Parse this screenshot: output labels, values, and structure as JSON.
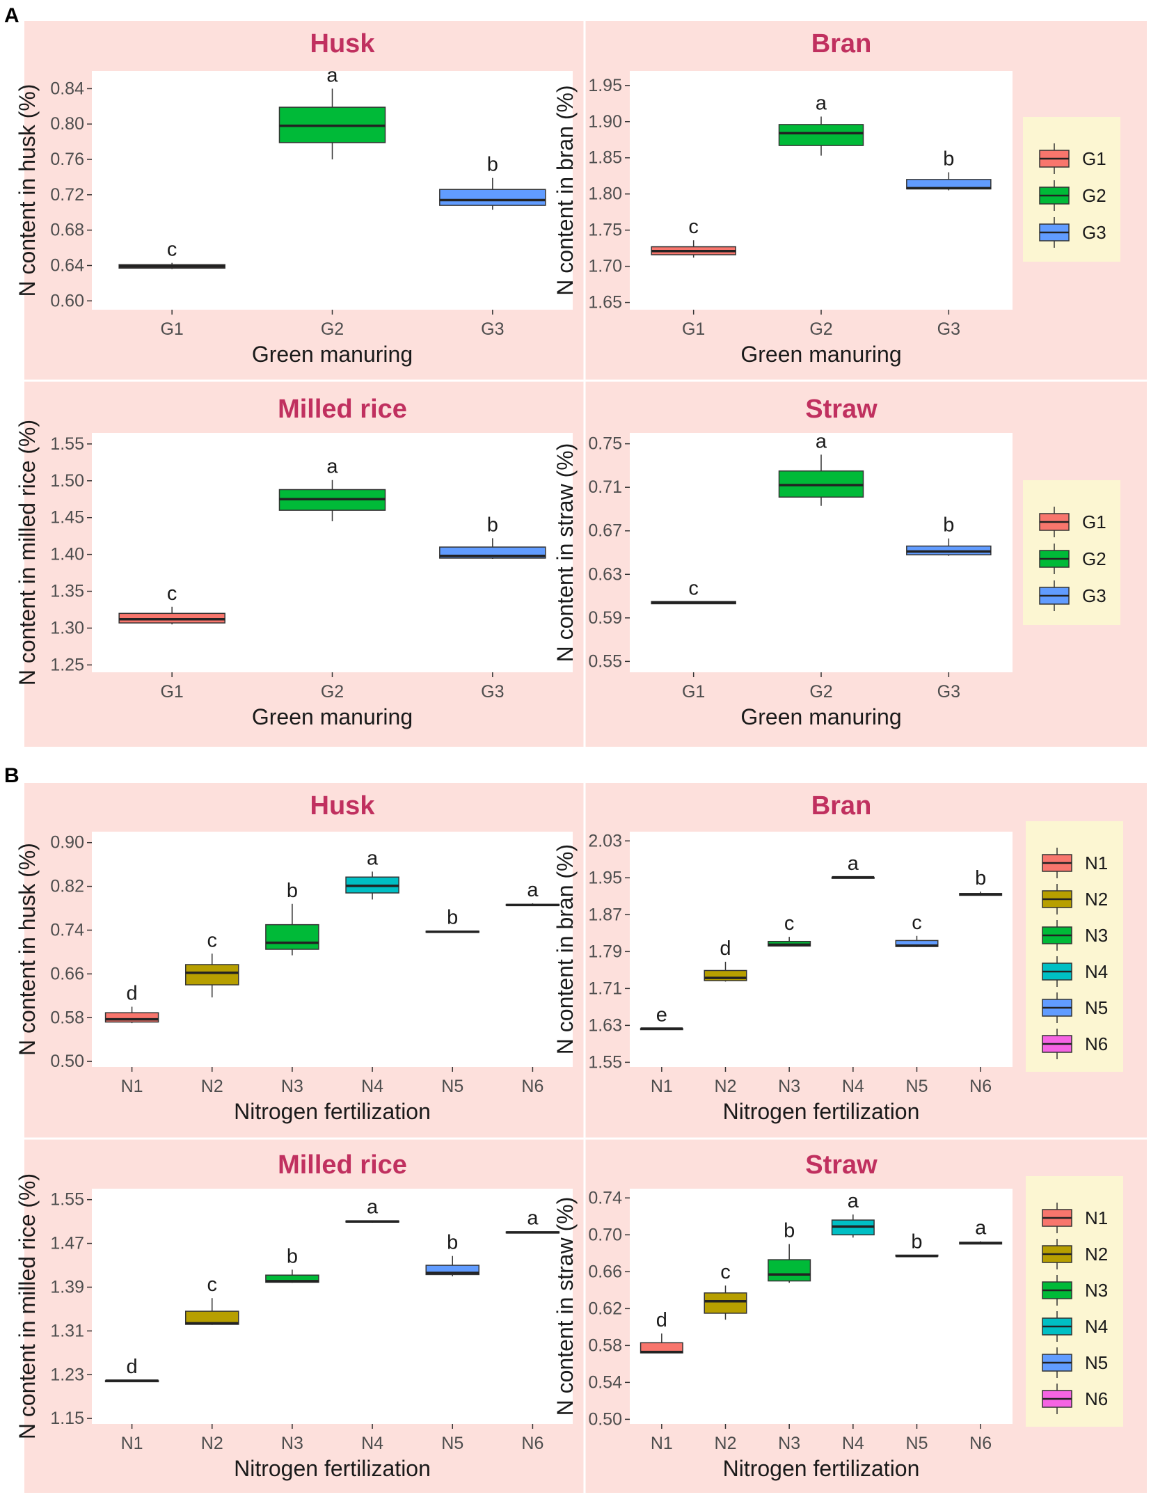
{
  "figure": {
    "section_a_label": "A",
    "section_b_label": "B",
    "title_color": "#c0305f"
  },
  "legends": {
    "green_manuring": {
      "keys": [
        {
          "label": "G1",
          "color": "#f8766d"
        },
        {
          "label": "G2",
          "color": "#00ba38"
        },
        {
          "label": "G3",
          "color": "#619cff"
        }
      ]
    },
    "nitrogen": {
      "keys": [
        {
          "label": "N1",
          "color": "#f8766d"
        },
        {
          "label": "N2",
          "color": "#b79f00"
        },
        {
          "label": "N3",
          "color": "#00ba38"
        },
        {
          "label": "N4",
          "color": "#00bfc4"
        },
        {
          "label": "N5",
          "color": "#619cff"
        },
        {
          "label": "N6",
          "color": "#f564e3"
        }
      ]
    }
  },
  "chart_data": [
    {
      "type": "box",
      "section": "A",
      "title": "Husk",
      "xlabel": "Green manuring",
      "ylabel": "N content in husk (%)",
      "ylim": [
        0.59,
        0.86
      ],
      "yticks": [
        "0.60",
        "0.64",
        "0.68",
        "0.72",
        "0.76",
        "0.80",
        "0.84"
      ],
      "categories": [
        "G1",
        "G2",
        "G3"
      ],
      "colors": [
        "#f8766d",
        "#00ba38",
        "#619cff"
      ],
      "boxes": [
        {
          "min": 0.636,
          "q1": 0.637,
          "median": 0.639,
          "q3": 0.641,
          "max": 0.643
        },
        {
          "min": 0.76,
          "q1": 0.779,
          "median": 0.798,
          "q3": 0.819,
          "max": 0.84
        },
        {
          "min": 0.703,
          "q1": 0.708,
          "median": 0.714,
          "q3": 0.726,
          "max": 0.739
        }
      ],
      "letters": [
        "c",
        "a",
        "b"
      ]
    },
    {
      "type": "box",
      "section": "A",
      "title": "Bran",
      "xlabel": "Green manuring",
      "ylabel": "N content in bran (%)",
      "ylim": [
        1.64,
        1.97
      ],
      "yticks": [
        "1.65",
        "1.70",
        "1.75",
        "1.80",
        "1.85",
        "1.90",
        "1.95"
      ],
      "categories": [
        "G1",
        "G2",
        "G3"
      ],
      "colors": [
        "#f8766d",
        "#00ba38",
        "#619cff"
      ],
      "boxes": [
        {
          "min": 1.712,
          "q1": 1.716,
          "median": 1.721,
          "q3": 1.727,
          "max": 1.736
        },
        {
          "min": 1.853,
          "q1": 1.867,
          "median": 1.884,
          "q3": 1.896,
          "max": 1.907
        },
        {
          "min": 1.805,
          "q1": 1.807,
          "median": 1.808,
          "q3": 1.82,
          "max": 1.83
        }
      ],
      "letters": [
        "c",
        "a",
        "b"
      ]
    },
    {
      "type": "box",
      "section": "A",
      "title": "Milled rice",
      "xlabel": "Green manuring",
      "ylabel": "N content in milled rice (%)",
      "ylim": [
        1.24,
        1.565
      ],
      "yticks": [
        "1.25",
        "1.30",
        "1.35",
        "1.40",
        "1.45",
        "1.50",
        "1.55"
      ],
      "categories": [
        "G1",
        "G2",
        "G3"
      ],
      "colors": [
        "#f8766d",
        "#00ba38",
        "#619cff"
      ],
      "boxes": [
        {
          "min": 1.305,
          "q1": 1.307,
          "median": 1.312,
          "q3": 1.32,
          "max": 1.329
        },
        {
          "min": 1.445,
          "q1": 1.46,
          "median": 1.475,
          "q3": 1.488,
          "max": 1.501
        },
        {
          "min": 1.394,
          "q1": 1.395,
          "median": 1.398,
          "q3": 1.41,
          "max": 1.422
        }
      ],
      "letters": [
        "c",
        "a",
        "b"
      ]
    },
    {
      "type": "box",
      "section": "A",
      "title": "Straw",
      "xlabel": "Green manuring",
      "ylabel": "N content in straw (%)",
      "ylim": [
        0.54,
        0.76
      ],
      "yticks": [
        "0.55",
        "0.59",
        "0.63",
        "0.67",
        "0.71",
        "0.75"
      ],
      "categories": [
        "G1",
        "G2",
        "G3"
      ],
      "colors": [
        "#f8766d",
        "#00ba38",
        "#619cff"
      ],
      "boxes": [
        {
          "min": 0.603,
          "q1": 0.603,
          "median": 0.604,
          "q3": 0.605,
          "max": 0.605
        },
        {
          "min": 0.693,
          "q1": 0.701,
          "median": 0.712,
          "q3": 0.725,
          "max": 0.74
        },
        {
          "min": 0.647,
          "q1": 0.648,
          "median": 0.651,
          "q3": 0.656,
          "max": 0.663
        }
      ],
      "letters": [
        "c",
        "a",
        "b"
      ]
    },
    {
      "type": "box",
      "section": "B",
      "title": "Husk",
      "xlabel": "Nitrogen fertilization",
      "ylabel": "N content in husk (%)",
      "ylim": [
        0.49,
        0.92
      ],
      "yticks": [
        "0.50",
        "0.58",
        "0.66",
        "0.74",
        "0.82",
        "0.90"
      ],
      "categories": [
        "N1",
        "N2",
        "N3",
        "N4",
        "N5",
        "N6"
      ],
      "colors": [
        "#f8766d",
        "#b79f00",
        "#00ba38",
        "#00bfc4",
        "#619cff",
        "#f564e3"
      ],
      "boxes": [
        {
          "min": 0.57,
          "q1": 0.572,
          "median": 0.577,
          "q3": 0.589,
          "max": 0.6
        },
        {
          "min": 0.617,
          "q1": 0.64,
          "median": 0.662,
          "q3": 0.677,
          "max": 0.697
        },
        {
          "min": 0.694,
          "q1": 0.705,
          "median": 0.717,
          "q3": 0.75,
          "max": 0.788
        },
        {
          "min": 0.796,
          "q1": 0.808,
          "median": 0.821,
          "q3": 0.837,
          "max": 0.847
        },
        {
          "min": 0.736,
          "q1": 0.736,
          "median": 0.737,
          "q3": 0.738,
          "max": 0.739
        },
        {
          "min": 0.784,
          "q1": 0.785,
          "median": 0.786,
          "q3": 0.787,
          "max": 0.789
        }
      ],
      "letters": [
        "d",
        "c",
        "b",
        "a",
        "b",
        "a"
      ]
    },
    {
      "type": "box",
      "section": "B",
      "title": "Bran",
      "xlabel": "Nitrogen fertilization",
      "ylabel": "N content in bran (%)",
      "ylim": [
        1.54,
        2.05
      ],
      "yticks": [
        "1.55",
        "1.63",
        "1.71",
        "1.79",
        "1.87",
        "1.95",
        "2.03"
      ],
      "categories": [
        "N1",
        "N2",
        "N3",
        "N4",
        "N5",
        "N6"
      ],
      "colors": [
        "#f8766d",
        "#b79f00",
        "#00ba38",
        "#00bfc4",
        "#619cff",
        "#f564e3"
      ],
      "boxes": [
        {
          "min": 1.622,
          "q1": 1.622,
          "median": 1.623,
          "q3": 1.623,
          "max": 1.624
        },
        {
          "min": 1.725,
          "q1": 1.727,
          "median": 1.733,
          "q3": 1.749,
          "max": 1.768
        },
        {
          "min": 1.801,
          "q1": 1.802,
          "median": 1.805,
          "q3": 1.812,
          "max": 1.822
        },
        {
          "min": 1.95,
          "q1": 1.95,
          "median": 1.951,
          "q3": 1.951,
          "max": 1.952
        },
        {
          "min": 1.8,
          "q1": 1.801,
          "median": 1.803,
          "q3": 1.814,
          "max": 1.824
        },
        {
          "min": 1.911,
          "q1": 1.912,
          "median": 1.914,
          "q3": 1.916,
          "max": 1.92
        }
      ],
      "letters": [
        "e",
        "d",
        "c",
        "a",
        "c",
        "b"
      ]
    },
    {
      "type": "box",
      "section": "B",
      "title": "Milled rice",
      "xlabel": "Nitrogen fertilization",
      "ylabel": "N content in milled rice (%)",
      "ylim": [
        1.14,
        1.57
      ],
      "yticks": [
        "1.15",
        "1.23",
        "1.31",
        "1.39",
        "1.47",
        "1.55"
      ],
      "categories": [
        "N1",
        "N2",
        "N3",
        "N4",
        "N5",
        "N6"
      ],
      "colors": [
        "#f8766d",
        "#b79f00",
        "#00ba38",
        "#00bfc4",
        "#619cff",
        "#f564e3"
      ],
      "boxes": [
        {
          "min": 1.218,
          "q1": 1.218,
          "median": 1.219,
          "q3": 1.219,
          "max": 1.22
        },
        {
          "min": 1.321,
          "q1": 1.322,
          "median": 1.324,
          "q3": 1.346,
          "max": 1.37
        },
        {
          "min": 1.398,
          "q1": 1.399,
          "median": 1.401,
          "q3": 1.412,
          "max": 1.422
        },
        {
          "min": 1.508,
          "q1": 1.509,
          "median": 1.51,
          "q3": 1.511,
          "max": 1.512
        },
        {
          "min": 1.41,
          "q1": 1.413,
          "median": 1.416,
          "q3": 1.43,
          "max": 1.447
        },
        {
          "min": 1.489,
          "q1": 1.489,
          "median": 1.49,
          "q3": 1.491,
          "max": 1.492
        }
      ],
      "letters": [
        "d",
        "c",
        "b",
        "a",
        "b",
        "a"
      ]
    },
    {
      "type": "box",
      "section": "B",
      "title": "Straw",
      "xlabel": "Nitrogen fertilization",
      "ylabel": "N content in straw (%)",
      "ylim": [
        0.495,
        0.75
      ],
      "yticks": [
        "0.50",
        "0.54",
        "0.58",
        "0.62",
        "0.66",
        "0.70",
        "0.74"
      ],
      "categories": [
        "N1",
        "N2",
        "N3",
        "N4",
        "N5",
        "N6"
      ],
      "colors": [
        "#f8766d",
        "#b79f00",
        "#00ba38",
        "#00bfc4",
        "#619cff",
        "#f564e3"
      ],
      "boxes": [
        {
          "min": 0.572,
          "q1": 0.572,
          "median": 0.573,
          "q3": 0.583,
          "max": 0.593
        },
        {
          "min": 0.608,
          "q1": 0.615,
          "median": 0.628,
          "q3": 0.637,
          "max": 0.645
        },
        {
          "min": 0.648,
          "q1": 0.65,
          "median": 0.657,
          "q3": 0.673,
          "max": 0.69
        },
        {
          "min": 0.697,
          "q1": 0.7,
          "median": 0.709,
          "q3": 0.716,
          "max": 0.722
        },
        {
          "min": 0.677,
          "q1": 0.677,
          "median": 0.677,
          "q3": 0.678,
          "max": 0.678
        },
        {
          "min": 0.69,
          "q1": 0.69,
          "median": 0.691,
          "q3": 0.692,
          "max": 0.693
        }
      ],
      "letters": [
        "d",
        "c",
        "b",
        "a",
        "b",
        "a"
      ]
    }
  ]
}
